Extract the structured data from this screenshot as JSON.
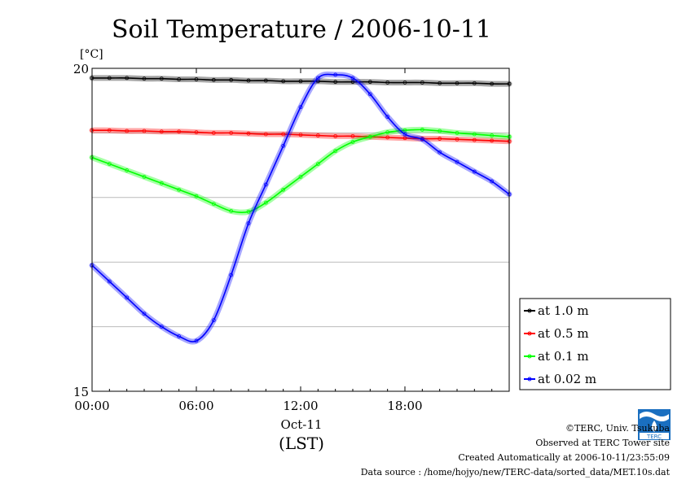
{
  "chart_data": {
    "type": "line",
    "title": "Soil Temperature / 2006-10-11",
    "ylabel": "[°C]",
    "ylim": [
      15,
      20
    ],
    "yticks": [
      15,
      20
    ],
    "xlim": [
      0,
      24
    ],
    "xticks": [
      {
        "value": 0,
        "label": "00:00"
      },
      {
        "value": 6,
        "label": "06:00"
      },
      {
        "value": 12,
        "label": "12:00"
      },
      {
        "value": 18,
        "label": "18:00"
      }
    ],
    "xdate_label": "Oct-11",
    "xlabel": "(LST)",
    "grid": "horizontal",
    "legend_position": "right",
    "x": [
      0,
      1,
      2,
      3,
      4,
      5,
      6,
      7,
      8,
      9,
      10,
      11,
      12,
      13,
      14,
      15,
      16,
      17,
      18,
      19,
      20,
      21,
      22,
      23,
      24
    ],
    "series": [
      {
        "name": "at 1.0 m",
        "color": "#000000",
        "values": [
          19.85,
          19.85,
          19.85,
          19.84,
          19.84,
          19.83,
          19.83,
          19.82,
          19.82,
          19.81,
          19.81,
          19.8,
          19.8,
          19.8,
          19.79,
          19.79,
          19.79,
          19.78,
          19.78,
          19.78,
          19.77,
          19.77,
          19.77,
          19.76,
          19.76
        ]
      },
      {
        "name": "at 0.5 m",
        "color": "#ff0000",
        "values": [
          19.04,
          19.04,
          19.03,
          19.03,
          19.02,
          19.02,
          19.01,
          19.0,
          19.0,
          18.99,
          18.98,
          18.98,
          18.97,
          18.96,
          18.95,
          18.95,
          18.94,
          18.93,
          18.92,
          18.91,
          18.91,
          18.9,
          18.89,
          18.88,
          18.87
        ]
      },
      {
        "name": "at 0.1 m",
        "color": "#00ff00",
        "values": [
          18.62,
          18.52,
          18.42,
          18.32,
          18.22,
          18.12,
          18.02,
          17.9,
          17.79,
          17.78,
          17.92,
          18.12,
          18.32,
          18.52,
          18.72,
          18.86,
          18.94,
          19.01,
          19.04,
          19.05,
          19.03,
          19.0,
          18.98,
          18.96,
          18.94
        ]
      },
      {
        "name": "at 0.02 m",
        "color": "#0000ff",
        "values": [
          16.95,
          16.7,
          16.45,
          16.2,
          16.0,
          15.85,
          15.78,
          16.1,
          16.8,
          17.6,
          18.2,
          18.8,
          19.4,
          19.85,
          19.9,
          19.85,
          19.6,
          19.25,
          18.98,
          18.9,
          18.7,
          18.55,
          18.4,
          18.25,
          18.05
        ]
      }
    ]
  },
  "credits": {
    "line1": "©TERC, Univ. Tsukuba",
    "line2": "Observed at TERC Tower site",
    "line3": "Created Automatically at 2006-10-11/23:55:09",
    "line4": "Data source : /home/hojyo/new/TERC-data/sorted_data/MET.10s.dat"
  },
  "logo": {
    "text": "TERC",
    "color": "#1a6fc0"
  }
}
